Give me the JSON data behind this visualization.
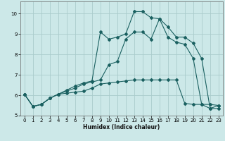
{
  "xlabel": "Humidex (Indice chaleur)",
  "bg_color": "#cce8e8",
  "grid_color": "#aacccc",
  "line_color": "#1a6060",
  "xlim": [
    -0.5,
    23.5
  ],
  "ylim": [
    5.0,
    10.6
  ],
  "yticks": [
    5,
    6,
    7,
    8,
    9,
    10
  ],
  "xticks": [
    0,
    1,
    2,
    3,
    4,
    5,
    6,
    7,
    8,
    9,
    10,
    11,
    12,
    13,
    14,
    15,
    16,
    17,
    18,
    19,
    20,
    21,
    22,
    23
  ],
  "line1_x": [
    0,
    1,
    2,
    3,
    4,
    5,
    6,
    7,
    8,
    9,
    10,
    11,
    12,
    13,
    14,
    15,
    16,
    17,
    18,
    19,
    20,
    21,
    22,
    23
  ],
  "line1_y": [
    6.05,
    5.45,
    5.55,
    5.85,
    6.05,
    6.1,
    6.15,
    6.2,
    6.35,
    6.55,
    6.6,
    6.65,
    6.7,
    6.75,
    6.75,
    6.75,
    6.75,
    6.75,
    6.75,
    5.6,
    5.55,
    5.55,
    5.55,
    5.5
  ],
  "line2_x": [
    0,
    1,
    2,
    3,
    4,
    5,
    6,
    7,
    8,
    9,
    10,
    11,
    12,
    13,
    14,
    15,
    16,
    17,
    18,
    19,
    20,
    21,
    22,
    23
  ],
  "line2_y": [
    6.05,
    5.45,
    5.55,
    5.85,
    6.05,
    6.2,
    6.35,
    6.55,
    6.65,
    6.75,
    7.5,
    7.65,
    8.75,
    9.1,
    9.1,
    8.75,
    9.75,
    8.85,
    8.6,
    8.5,
    7.8,
    5.55,
    5.35,
    5.35
  ],
  "line3_x": [
    0,
    1,
    2,
    3,
    4,
    5,
    6,
    7,
    8,
    9,
    10,
    11,
    12,
    13,
    14,
    15,
    16,
    17,
    18,
    19,
    20,
    21,
    22,
    23
  ],
  "line3_y": [
    6.05,
    5.45,
    5.55,
    5.85,
    6.05,
    6.25,
    6.45,
    6.6,
    6.7,
    9.1,
    8.75,
    8.85,
    9.0,
    10.1,
    10.1,
    9.8,
    9.75,
    9.35,
    8.85,
    8.85,
    8.55,
    7.8,
    5.35,
    5.5
  ]
}
